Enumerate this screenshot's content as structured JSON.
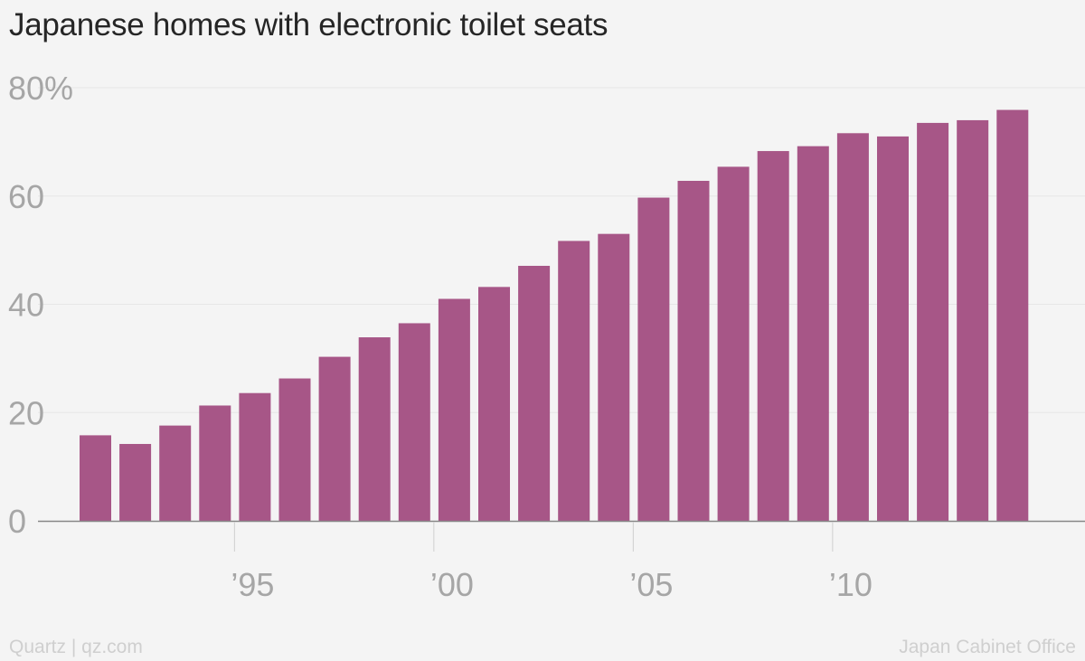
{
  "title": "Japanese homes with electronic toilet seats",
  "footer": {
    "credit": "Quartz | qz.com",
    "source": "Japan Cabinet Office"
  },
  "colors": {
    "bar": "#a75687",
    "grid": "#e6e6e6",
    "axis": "#888888",
    "tick_label": "#a6a6a6"
  },
  "chart_data": {
    "type": "bar",
    "title": "Japanese homes with electronic toilet seats",
    "xlabel": "",
    "ylabel": "",
    "ylim": [
      0,
      80
    ],
    "y_ticks": [
      {
        "value": 0,
        "label": "0"
      },
      {
        "value": 20,
        "label": "20"
      },
      {
        "value": 40,
        "label": "40"
      },
      {
        "value": 60,
        "label": "60"
      },
      {
        "value": 80,
        "label": "80%"
      }
    ],
    "x_ticks": [
      {
        "year": 1995,
        "label": "’95"
      },
      {
        "year": 2000,
        "label": "’00"
      },
      {
        "year": 2005,
        "label": "’05"
      },
      {
        "year": 2010,
        "label": "’10"
      }
    ],
    "categories": [
      1991,
      1992,
      1993,
      1994,
      1995,
      1996,
      1997,
      1998,
      1999,
      2000,
      2001,
      2002,
      2003,
      2004,
      2005,
      2006,
      2007,
      2008,
      2009,
      2010,
      2011,
      2012,
      2013,
      2014
    ],
    "values": [
      15.8,
      14.2,
      17.6,
      21.3,
      23.6,
      26.3,
      30.3,
      33.9,
      36.5,
      41.0,
      43.2,
      47.1,
      51.7,
      53.0,
      59.7,
      62.8,
      65.4,
      68.3,
      69.2,
      71.6,
      71.0,
      73.5,
      74.0,
      75.9
    ]
  }
}
